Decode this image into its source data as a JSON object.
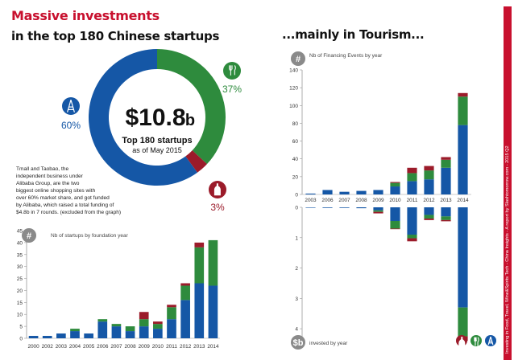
{
  "titles": {
    "left_line1": "Massive investments",
    "left_line2": "in the top 180 Chinese startups",
    "right": "...mainly in Tourism..."
  },
  "donut": {
    "center_value": "$10.8",
    "center_unit": "b",
    "center_label": "Top 180 startups",
    "center_sub": "as of May 2015",
    "slices": [
      {
        "name": "Tourism",
        "value": 37,
        "label": "37%",
        "color": "#2e8b3d",
        "icon": "fork-knife-icon"
      },
      {
        "name": "Wine",
        "value": 3,
        "label": "3%",
        "color": "#9b1b2a",
        "icon": "wine-bottle-icon"
      },
      {
        "name": "Eiffel",
        "value": 60,
        "label": "60%",
        "color": "#1557a6",
        "icon": "eiffel-tower-icon"
      }
    ],
    "note": [
      "Tmall and Taobao, the",
      "independent business under",
      "Alibaba Group, are the two",
      "biggest online shopping sites with",
      "over 60% market share, and got funded",
      "by Alibaba, which raised a total funding of",
      "$4.8b in 7 rounds. (excluded from the graph)"
    ]
  },
  "colors": {
    "blue": "#1557a6",
    "green": "#2e8b3d",
    "red": "#9b1b2a",
    "accent": "#c8102e",
    "grey": "#888888"
  },
  "chart_data": [
    {
      "type": "bar",
      "title": "Nb of startups by foundation year",
      "badge": "#",
      "categories": [
        "2000",
        "2002",
        "2003",
        "2004",
        "2005",
        "2006",
        "2007",
        "2008",
        "2009",
        "2010",
        "2011",
        "2012",
        "2013",
        "2014"
      ],
      "ylim": [
        0,
        45
      ],
      "yticks": [
        0,
        5,
        10,
        15,
        20,
        25,
        30,
        35,
        40,
        45
      ],
      "series": [
        {
          "values": [
            1,
            1,
            2,
            3,
            2,
            7,
            5,
            3,
            5,
            4,
            8,
            16,
            23,
            22
          ]
        },
        {
          "values": [
            0,
            0,
            0,
            1,
            0,
            1,
            1,
            2,
            3,
            2,
            5,
            6,
            15,
            19
          ]
        },
        {
          "values": [
            0,
            0,
            0,
            0,
            0,
            0,
            0,
            0,
            3,
            1,
            1,
            1,
            2,
            0
          ]
        }
      ]
    },
    {
      "type": "bar",
      "title": "Nb of Financing Events by year",
      "badge": "#",
      "categories": [
        "2003",
        "2006",
        "2007",
        "2008",
        "2009",
        "2010",
        "2011",
        "2012",
        "2013",
        "2014"
      ],
      "ylim": [
        0,
        140
      ],
      "yticks": [
        0,
        20,
        40,
        60,
        80,
        100,
        120,
        140
      ],
      "series": [
        {
          "values": [
            1,
            5,
            3,
            4,
            5,
            9,
            15,
            17,
            30,
            78
          ]
        },
        {
          "values": [
            0,
            0,
            0,
            0,
            0,
            4,
            9,
            10,
            9,
            32
          ]
        },
        {
          "values": [
            0,
            0,
            0,
            0,
            0,
            1,
            6,
            5,
            3,
            4
          ]
        }
      ]
    },
    {
      "type": "bar",
      "title": "invested by year",
      "badge": "$b",
      "categories": [
        "2003",
        "2006",
        "2007",
        "2008",
        "2009",
        "2010",
        "2011",
        "2012",
        "2013",
        "2014"
      ],
      "ylim": [
        0,
        4.5
      ],
      "yticks": [
        0,
        1,
        2,
        3,
        4
      ],
      "inverted": true,
      "series": [
        {
          "values": [
            0.01,
            0.02,
            0.02,
            0.03,
            0.1,
            0.45,
            0.9,
            0.25,
            0.3,
            3.3
          ]
        },
        {
          "values": [
            0,
            0,
            0,
            0,
            0.05,
            0.25,
            0.12,
            0.12,
            0.12,
            0.95
          ]
        },
        {
          "values": [
            0,
            0,
            0,
            0,
            0.05,
            0.02,
            0.1,
            0.05,
            0.04,
            0.15
          ]
        }
      ]
    }
  ],
  "legend_icons": [
    "wine-bottle-icon",
    "fork-knife-icon",
    "eiffel-tower-icon"
  ],
  "side_text": "Investing in Food, Travel, Wine&Spirits Tech - China Insights - A report by Slashtomorrow.com - 2015 Q2"
}
